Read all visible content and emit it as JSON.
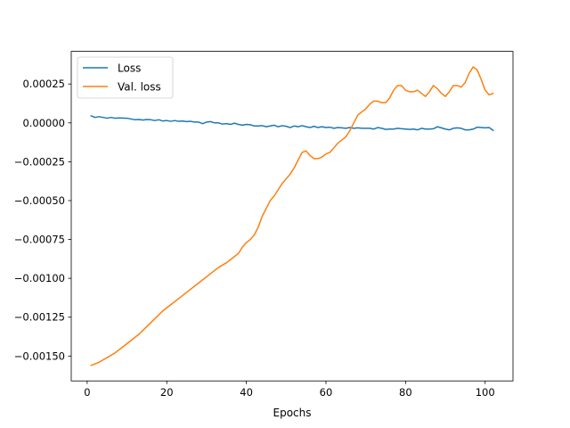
{
  "chart_data": {
    "type": "line",
    "title": "",
    "xlabel": "Epochs",
    "ylabel": "",
    "xlim": [
      -4,
      107
    ],
    "ylim": [
      -0.00166,
      0.00046
    ],
    "xticks": [
      0,
      20,
      40,
      60,
      80,
      100
    ],
    "xtick_labels": [
      "0",
      "20",
      "40",
      "60",
      "80",
      "100"
    ],
    "yticks": [
      -0.0015,
      -0.00125,
      -0.001,
      -0.00075,
      -0.0005,
      -0.00025,
      0.0,
      0.00025
    ],
    "ytick_labels": [
      "−0.00150",
      "−0.00125",
      "−0.00100",
      "−0.00075",
      "−0.00050",
      "−0.00025",
      "0.00000",
      "0.00025"
    ],
    "grid": false,
    "legend_position": "top-left",
    "series": [
      {
        "name": "Loss",
        "color": "#1f77b4",
        "points": [
          [
            1,
            4.5e-05
          ],
          [
            2,
            3.5e-05
          ],
          [
            3,
            4e-05
          ],
          [
            4,
            3.5e-05
          ],
          [
            5,
            3e-05
          ],
          [
            6,
            3.5e-05
          ],
          [
            7,
            3e-05
          ],
          [
            8,
            3.2e-05
          ],
          [
            10,
            3e-05
          ],
          [
            11,
            2.5e-05
          ],
          [
            12,
            2e-05
          ],
          [
            13,
            2.2e-05
          ],
          [
            14,
            1.8e-05
          ],
          [
            15,
            2.2e-05
          ],
          [
            16,
            2e-05
          ],
          [
            17,
            1.5e-05
          ],
          [
            18,
            2e-05
          ],
          [
            19,
            1.2e-05
          ],
          [
            20,
            1.5e-05
          ],
          [
            21,
            1e-05
          ],
          [
            22,
            1.5e-05
          ],
          [
            23,
            1e-05
          ],
          [
            24,
            1.2e-05
          ],
          [
            25,
            8e-06
          ],
          [
            26,
            1e-05
          ],
          [
            27,
            5e-06
          ],
          [
            28,
            5e-06
          ],
          [
            29,
            -5e-06
          ],
          [
            30,
            5e-06
          ],
          [
            31,
            8e-06
          ],
          [
            32,
            0.0
          ],
          [
            33,
            0.0
          ],
          [
            34,
            -8e-06
          ],
          [
            35,
            -5e-06
          ],
          [
            36,
            -1e-05
          ],
          [
            37,
            -2e-06
          ],
          [
            38,
            -1e-05
          ],
          [
            39,
            -1.5e-05
          ],
          [
            40,
            -1e-05
          ],
          [
            41,
            -1.2e-05
          ],
          [
            42,
            -2e-05
          ],
          [
            43,
            -2e-05
          ],
          [
            44,
            -1.8e-05
          ],
          [
            45,
            -2.5e-05
          ],
          [
            46,
            -2e-05
          ],
          [
            47,
            -1.5e-05
          ],
          [
            48,
            -2.5e-05
          ],
          [
            49,
            -1.8e-05
          ],
          [
            50,
            -2.2e-05
          ],
          [
            51,
            -3e-05
          ],
          [
            52,
            -2e-05
          ],
          [
            53,
            -2.5e-05
          ],
          [
            54,
            -1.8e-05
          ],
          [
            55,
            -2.5e-05
          ],
          [
            56,
            -3e-05
          ],
          [
            57,
            -2.2e-05
          ],
          [
            58,
            -3e-05
          ],
          [
            59,
            -2.5e-05
          ],
          [
            60,
            -3e-05
          ],
          [
            61,
            -2.8e-05
          ],
          [
            62,
            -3.5e-05
          ],
          [
            63,
            -3e-05
          ],
          [
            64,
            -3.2e-05
          ],
          [
            65,
            -3.5e-05
          ],
          [
            66,
            -3e-05
          ],
          [
            67,
            -3.5e-05
          ],
          [
            68,
            -3.2e-05
          ],
          [
            69,
            -3.5e-05
          ],
          [
            70,
            -3.5e-05
          ],
          [
            71,
            -3.5e-05
          ],
          [
            72,
            -4e-05
          ],
          [
            73,
            -3e-05
          ],
          [
            74,
            -3.5e-05
          ],
          [
            75,
            -4.2e-05
          ],
          [
            76,
            -4e-05
          ],
          [
            77,
            -4e-05
          ],
          [
            78,
            -3.5e-05
          ],
          [
            79,
            -3.8e-05
          ],
          [
            80,
            -4e-05
          ],
          [
            81,
            -4.2e-05
          ],
          [
            82,
            -4e-05
          ],
          [
            83,
            -4.5e-05
          ],
          [
            84,
            -3.5e-05
          ],
          [
            85,
            -4e-05
          ],
          [
            86,
            -4e-05
          ],
          [
            87,
            -3.8e-05
          ],
          [
            88,
            -2.5e-05
          ],
          [
            89,
            -3.2e-05
          ],
          [
            90,
            -4e-05
          ],
          [
            91,
            -4.5e-05
          ],
          [
            92,
            -3.5e-05
          ],
          [
            93,
            -3.2e-05
          ],
          [
            94,
            -3.5e-05
          ],
          [
            95,
            -4.5e-05
          ],
          [
            96,
            -4.5e-05
          ],
          [
            97,
            -4e-05
          ],
          [
            98,
            -2.8e-05
          ],
          [
            99,
            -3e-05
          ],
          [
            100,
            -3.2e-05
          ],
          [
            101,
            -3e-05
          ],
          [
            102,
            -4.8e-05
          ]
        ]
      },
      {
        "name": "Val. loss",
        "color": "#ff7f0e",
        "points": [
          [
            1,
            -0.00156
          ],
          [
            3,
            -0.00154
          ],
          [
            5,
            -0.00151
          ],
          [
            7,
            -0.00148
          ],
          [
            9,
            -0.00144
          ],
          [
            11,
            -0.0014
          ],
          [
            13,
            -0.00136
          ],
          [
            15,
            -0.00131
          ],
          [
            17,
            -0.00126
          ],
          [
            19,
            -0.00121
          ],
          [
            21,
            -0.00117
          ],
          [
            23,
            -0.00113
          ],
          [
            25,
            -0.00109
          ],
          [
            27,
            -0.00105
          ],
          [
            29,
            -0.00101
          ],
          [
            31,
            -0.00097
          ],
          [
            33,
            -0.00093
          ],
          [
            35,
            -0.0009
          ],
          [
            37,
            -0.00086
          ],
          [
            38,
            -0.00084
          ],
          [
            39,
            -0.0008
          ],
          [
            40,
            -0.00077
          ],
          [
            41,
            -0.00075
          ],
          [
            42,
            -0.00072
          ],
          [
            43,
            -0.00067
          ],
          [
            44,
            -0.0006
          ],
          [
            45,
            -0.00055
          ],
          [
            46,
            -0.0005
          ],
          [
            47,
            -0.00047
          ],
          [
            48,
            -0.00043
          ],
          [
            49,
            -0.00039
          ],
          [
            50,
            -0.00036
          ],
          [
            51,
            -0.00033
          ],
          [
            52,
            -0.00029
          ],
          [
            53,
            -0.00024
          ],
          [
            54,
            -0.00019
          ],
          [
            55,
            -0.00018
          ],
          [
            56,
            -0.00021
          ],
          [
            57,
            -0.00023
          ],
          [
            58,
            -0.00023
          ],
          [
            59,
            -0.00022
          ],
          [
            60,
            -0.0002
          ],
          [
            61,
            -0.00019
          ],
          [
            62,
            -0.00016
          ],
          [
            63,
            -0.00013
          ],
          [
            64,
            -0.00011
          ],
          [
            65,
            -9e-05
          ],
          [
            66,
            -5e-05
          ],
          [
            67,
            0.0
          ],
          [
            68,
            5e-05
          ],
          [
            69,
            7e-05
          ],
          [
            70,
            9e-05
          ],
          [
            71,
            0.00012
          ],
          [
            72,
            0.00014
          ],
          [
            73,
            0.00014
          ],
          [
            74,
            0.00013
          ],
          [
            75,
            0.00013
          ],
          [
            76,
            0.00016
          ],
          [
            77,
            0.00021
          ],
          [
            78,
            0.00024
          ],
          [
            79,
            0.00024
          ],
          [
            80,
            0.00021
          ],
          [
            81,
            0.0002
          ],
          [
            82,
            0.0002
          ],
          [
            83,
            0.00021
          ],
          [
            84,
            0.00019
          ],
          [
            85,
            0.00017
          ],
          [
            86,
            0.0002
          ],
          [
            87,
            0.00024
          ],
          [
            88,
            0.00022
          ],
          [
            89,
            0.00019
          ],
          [
            90,
            0.00017
          ],
          [
            91,
            0.0002
          ],
          [
            92,
            0.00024
          ],
          [
            93,
            0.00024
          ],
          [
            94,
            0.00023
          ],
          [
            95,
            0.00026
          ],
          [
            96,
            0.00032
          ],
          [
            97,
            0.00036
          ],
          [
            98,
            0.00034
          ],
          [
            99,
            0.00028
          ],
          [
            100,
            0.00021
          ],
          [
            101,
            0.00018
          ],
          [
            102,
            0.00019
          ]
        ]
      }
    ]
  }
}
